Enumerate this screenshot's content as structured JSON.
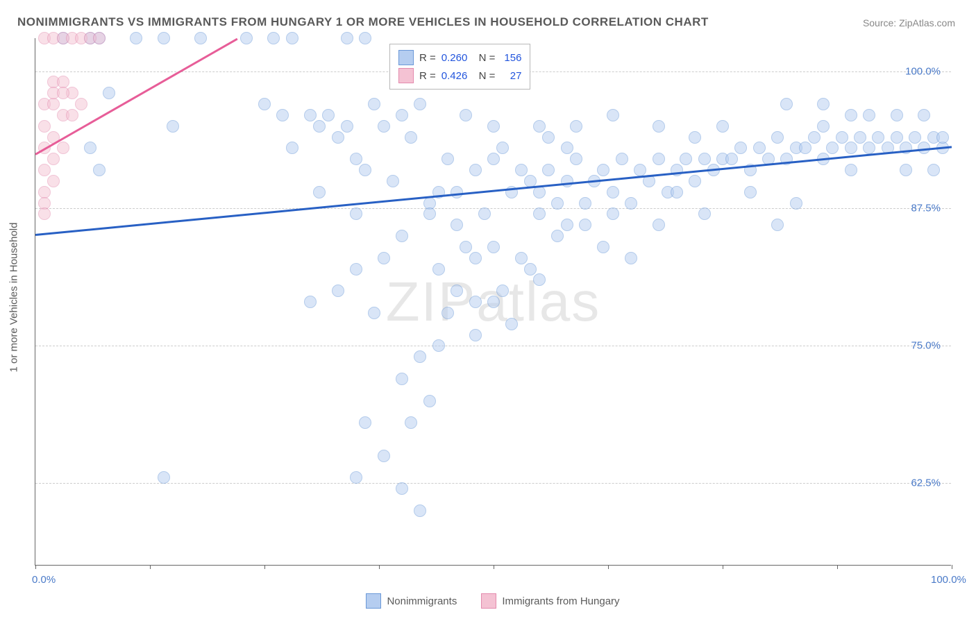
{
  "title": "NONIMMIGRANTS VS IMMIGRANTS FROM HUNGARY 1 OR MORE VEHICLES IN HOUSEHOLD CORRELATION CHART",
  "source": "Source: ZipAtlas.com",
  "ylabel": "1 or more Vehicles in Household",
  "watermark_a": "ZIP",
  "watermark_b": "atlas",
  "chart": {
    "type": "scatter",
    "xlim": [
      0,
      100
    ],
    "ylim": [
      55,
      103
    ],
    "yticks": [
      62.5,
      75.0,
      87.5,
      100.0
    ],
    "ytick_labels": [
      "62.5%",
      "75.0%",
      "87.5%",
      "100.0%"
    ],
    "xticks": [
      0,
      12.5,
      25,
      37.5,
      50,
      62.5,
      75,
      87.5,
      100
    ],
    "xtick_labels_shown": {
      "0": "0.0%",
      "100": "100.0%"
    },
    "background_color": "#ffffff",
    "grid_color": "#cccccc",
    "marker_radius": 9,
    "marker_opacity": 0.5,
    "series": [
      {
        "name": "Nonimmigrants",
        "fill_color": "#b5cdf0",
        "stroke_color": "#6a98d8",
        "trend_color": "#2860c4",
        "R": "0.260",
        "N": "156",
        "trend": {
          "x1": 0,
          "y1": 85.2,
          "x2": 100,
          "y2": 93.2
        },
        "points": [
          [
            3,
            103
          ],
          [
            6,
            103
          ],
          [
            7,
            103
          ],
          [
            11,
            103
          ],
          [
            14,
            103
          ],
          [
            18,
            103
          ],
          [
            23,
            103
          ],
          [
            26,
            103
          ],
          [
            28,
            103
          ],
          [
            34,
            103
          ],
          [
            36,
            103
          ],
          [
            8,
            98
          ],
          [
            15,
            95
          ],
          [
            6,
            93
          ],
          [
            7,
            91
          ],
          [
            25,
            97
          ],
          [
            27,
            96
          ],
          [
            28,
            93
          ],
          [
            30,
            96
          ],
          [
            31,
            95
          ],
          [
            31,
            89
          ],
          [
            32,
            96
          ],
          [
            33,
            94
          ],
          [
            34,
            95
          ],
          [
            35,
            92
          ],
          [
            36,
            91
          ],
          [
            37,
            97
          ],
          [
            38,
            95
          ],
          [
            39,
            90
          ],
          [
            40,
            96
          ],
          [
            41,
            94
          ],
          [
            42,
            97
          ],
          [
            43,
            88
          ],
          [
            44,
            89
          ],
          [
            45,
            92
          ],
          [
            46,
            89
          ],
          [
            47,
            96
          ],
          [
            48,
            91
          ],
          [
            49,
            87
          ],
          [
            50,
            92
          ],
          [
            51,
            93
          ],
          [
            52,
            89
          ],
          [
            53,
            91
          ],
          [
            54,
            90
          ],
          [
            55,
            89
          ],
          [
            56,
            91
          ],
          [
            57,
            88
          ],
          [
            58,
            90
          ],
          [
            59,
            92
          ],
          [
            60,
            86
          ],
          [
            61,
            90
          ],
          [
            62,
            91
          ],
          [
            63,
            89
          ],
          [
            64,
            92
          ],
          [
            65,
            88
          ],
          [
            66,
            91
          ],
          [
            67,
            90
          ],
          [
            68,
            92
          ],
          [
            69,
            89
          ],
          [
            70,
            91
          ],
          [
            71,
            92
          ],
          [
            72,
            90
          ],
          [
            73,
            92
          ],
          [
            74,
            91
          ],
          [
            75,
            92
          ],
          [
            76,
            92
          ],
          [
            77,
            93
          ],
          [
            78,
            91
          ],
          [
            79,
            93
          ],
          [
            80,
            92
          ],
          [
            81,
            94
          ],
          [
            82,
            92
          ],
          [
            83,
            93
          ],
          [
            84,
            93
          ],
          [
            85,
            94
          ],
          [
            86,
            92
          ],
          [
            87,
            93
          ],
          [
            88,
            94
          ],
          [
            89,
            93
          ],
          [
            90,
            94
          ],
          [
            91,
            93
          ],
          [
            92,
            94
          ],
          [
            93,
            93
          ],
          [
            94,
            94
          ],
          [
            95,
            93
          ],
          [
            96,
            94
          ],
          [
            97,
            93
          ],
          [
            98,
            94
          ],
          [
            99,
            93
          ],
          [
            99,
            94
          ],
          [
            55,
            87
          ],
          [
            57,
            85
          ],
          [
            62,
            84
          ],
          [
            65,
            83
          ],
          [
            53,
            83
          ],
          [
            48,
            83
          ],
          [
            44,
            82
          ],
          [
            46,
            80
          ],
          [
            50,
            79
          ],
          [
            48,
            76
          ],
          [
            52,
            77
          ],
          [
            44,
            75
          ],
          [
            42,
            74
          ],
          [
            40,
            72
          ],
          [
            43,
            70
          ],
          [
            41,
            68
          ],
          [
            36,
            68
          ],
          [
            38,
            65
          ],
          [
            35,
            63
          ],
          [
            40,
            62
          ],
          [
            42,
            60
          ],
          [
            14,
            63
          ],
          [
            40,
            85
          ],
          [
            43,
            87
          ],
          [
            46,
            86
          ],
          [
            38,
            83
          ],
          [
            35,
            82
          ],
          [
            33,
            80
          ],
          [
            30,
            79
          ],
          [
            37,
            78
          ],
          [
            50,
            84
          ],
          [
            55,
            81
          ],
          [
            58,
            86
          ],
          [
            60,
            88
          ],
          [
            63,
            87
          ],
          [
            48,
            79
          ],
          [
            51,
            80
          ],
          [
            54,
            82
          ],
          [
            47,
            84
          ],
          [
            45,
            78
          ],
          [
            56,
            94
          ],
          [
            58,
            93
          ],
          [
            72,
            94
          ],
          [
            75,
            95
          ],
          [
            78,
            89
          ],
          [
            81,
            86
          ],
          [
            68,
            86
          ],
          [
            63,
            96
          ],
          [
            68,
            95
          ],
          [
            83,
            88
          ],
          [
            86,
            95
          ],
          [
            89,
            91
          ],
          [
            70,
            89
          ],
          [
            73,
            87
          ],
          [
            55,
            95
          ],
          [
            59,
            95
          ],
          [
            50,
            95
          ],
          [
            82,
            97
          ],
          [
            86,
            97
          ],
          [
            89,
            96
          ],
          [
            91,
            96
          ],
          [
            94,
            96
          ],
          [
            97,
            96
          ],
          [
            95,
            91
          ],
          [
            98,
            91
          ],
          [
            35,
            87
          ]
        ]
      },
      {
        "name": "Immigrants from Hungary",
        "fill_color": "#f4c2d3",
        "stroke_color": "#e38aad",
        "trend_color": "#e75d98",
        "R": "0.426",
        "N": "27",
        "trend": {
          "x1": 0,
          "y1": 92.5,
          "x2": 22,
          "y2": 103
        },
        "points": [
          [
            1,
            103
          ],
          [
            2,
            103
          ],
          [
            3,
            103
          ],
          [
            4,
            103
          ],
          [
            5,
            103
          ],
          [
            6,
            103
          ],
          [
            7,
            103
          ],
          [
            2,
            99
          ],
          [
            3,
            99
          ],
          [
            1,
            97
          ],
          [
            2,
            97
          ],
          [
            3,
            96
          ],
          [
            4,
            96
          ],
          [
            1,
            95
          ],
          [
            2,
            94
          ],
          [
            3,
            93
          ],
          [
            1,
            93
          ],
          [
            2,
            92
          ],
          [
            1,
            91
          ],
          [
            2,
            90
          ],
          [
            1,
            89
          ],
          [
            1,
            88
          ],
          [
            1,
            87
          ],
          [
            2,
            98
          ],
          [
            4,
            98
          ],
          [
            5,
            97
          ],
          [
            3,
            98
          ]
        ]
      }
    ]
  },
  "legend_bottom": {
    "items": [
      {
        "label": "Nonimmigrants",
        "fill": "#b5cdf0",
        "stroke": "#6a98d8"
      },
      {
        "label": "Immigrants from Hungary",
        "fill": "#f4c2d3",
        "stroke": "#e38aad"
      }
    ]
  }
}
